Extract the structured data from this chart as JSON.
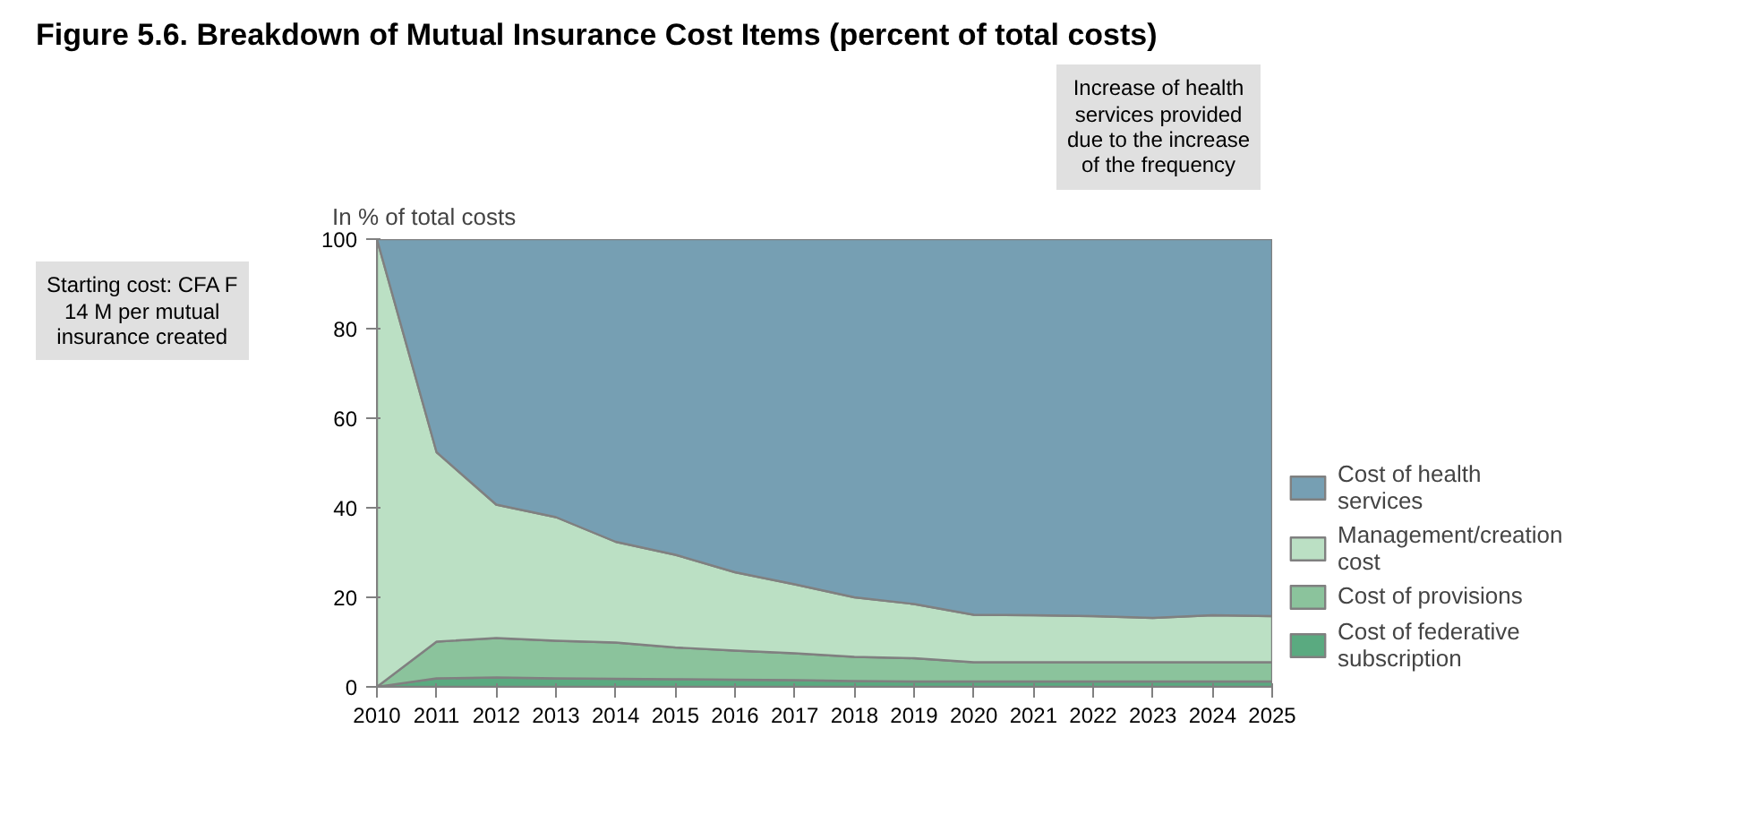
{
  "chart_data": {
    "type": "area",
    "stacked": true,
    "title": "Figure 5.6. Breakdown of Mutual Insurance Cost Items (percent of total costs)",
    "ylabel": "In % of total costs",
    "x": [
      2010,
      2011,
      2012,
      2013,
      2014,
      2015,
      2016,
      2017,
      2018,
      2019,
      2020,
      2021,
      2022,
      2023,
      2024,
      2025
    ],
    "xlim": [
      2010,
      2025
    ],
    "xticks": [
      2010,
      2011,
      2012,
      2013,
      2014,
      2015,
      2016,
      2017,
      2018,
      2019,
      2020,
      2021,
      2022,
      2023,
      2024,
      2025
    ],
    "ylim": [
      0,
      100
    ],
    "yticks": [
      0,
      20,
      40,
      60,
      80,
      100
    ],
    "legend": "right",
    "series": [
      {
        "name": "Cost of federative subscription",
        "color": "#5aaa80",
        "values": [
          0,
          1.9,
          2.1,
          1.9,
          1.8,
          1.7,
          1.6,
          1.5,
          1.3,
          1.2,
          1.2,
          1.2,
          1.2,
          1.2,
          1.2,
          1.2
        ]
      },
      {
        "name": "Cost of provisions",
        "color": "#8bc39c",
        "values": [
          0,
          8.2,
          8.8,
          8.4,
          8.1,
          7.1,
          6.5,
          6.0,
          5.4,
          5.2,
          4.3,
          4.3,
          4.3,
          4.3,
          4.3,
          4.3
        ]
      },
      {
        "name": "Management/creation cost",
        "color": "#bbe0c4",
        "values": [
          100,
          42.3,
          29.8,
          27.6,
          22.5,
          20.7,
          17.5,
          15.4,
          13.3,
          12.1,
          10.6,
          10.5,
          10.3,
          9.9,
          10.5,
          10.3
        ]
      },
      {
        "name": "Cost of health services",
        "color": "#769fb3",
        "values": [
          0,
          47.6,
          59.3,
          62.1,
          67.6,
          70.5,
          74.4,
          77.1,
          80.0,
          81.5,
          83.9,
          84.0,
          84.2,
          84.6,
          84.0,
          84.2
        ]
      }
    ],
    "annotations": [
      "Starting cost: CFA F 14 M per mutual insurance created",
      "Increase of health services provided due to the increase of the frequency"
    ]
  }
}
